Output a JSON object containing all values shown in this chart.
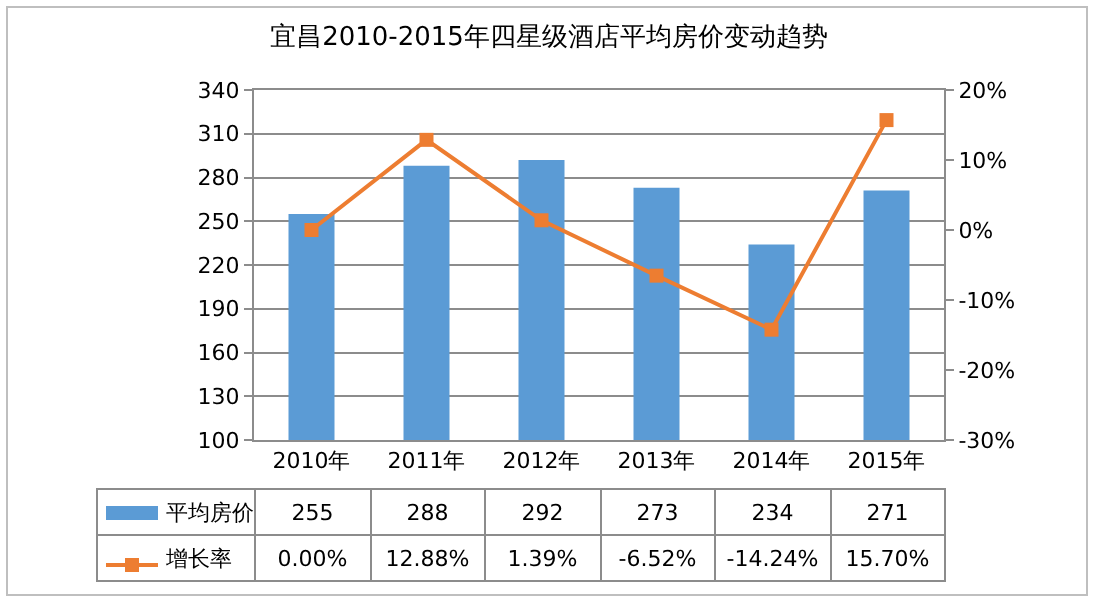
{
  "chart_data": {
    "type": "bar",
    "title": "宜昌2010-2015年四星级酒店平均房价变动趋势",
    "categories": [
      "2010年",
      "2011年",
      "2012年",
      "2013年",
      "2014年",
      "2015年"
    ],
    "series": [
      {
        "name": "平均房价",
        "color": "#5b9bd5",
        "values": [
          255,
          288,
          292,
          273,
          234,
          271
        ],
        "value_labels": [
          "255",
          "288",
          "292",
          "273",
          "234",
          "271"
        ]
      },
      {
        "name": "增长率",
        "type": "line",
        "axis": "y2",
        "color": "#ed7d31",
        "marker": "square",
        "line_style": "solid",
        "values": [
          0.0,
          12.88,
          1.39,
          -6.52,
          -14.24,
          15.7
        ],
        "value_labels": [
          "0.00%",
          "12.88%",
          "1.39%",
          "-6.52%",
          "-14.24%",
          "15.70%"
        ]
      }
    ],
    "ylim": [
      100,
      340
    ],
    "yticks": [
      100,
      130,
      160,
      190,
      220,
      250,
      280,
      310,
      340
    ],
    "y2lim": [
      -30,
      20
    ],
    "y2ticks": [
      {
        "value": -30,
        "label": "-30%"
      },
      {
        "value": -20,
        "label": "-20%"
      },
      {
        "value": -10,
        "label": "-10%"
      },
      {
        "value": 0,
        "label": "0%"
      },
      {
        "value": 10,
        "label": "10%"
      },
      {
        "value": 20,
        "label": "20%"
      }
    ],
    "grid": "y",
    "legend": "bottom"
  }
}
